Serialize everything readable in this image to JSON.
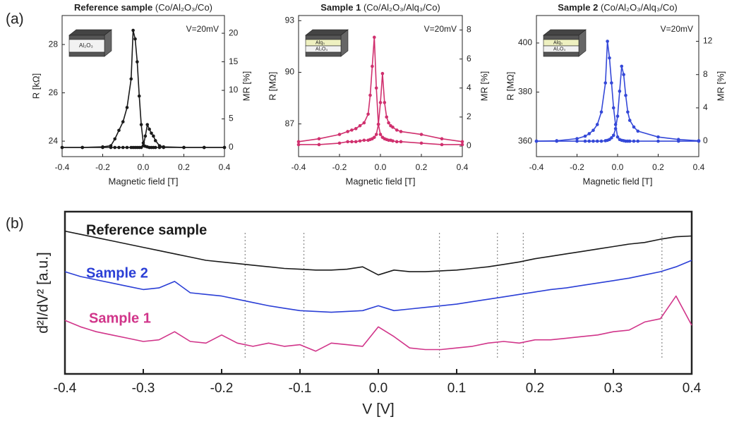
{
  "panel_labels": [
    "(a)",
    "(b)"
  ],
  "chart_data": [
    {
      "type": "line",
      "title": "Reference sample",
      "subtitle": "(Co/Al₂O₃/Co)",
      "annotation": "V=20mV",
      "inset_labels": [
        "Al₂O₃"
      ],
      "markers": true,
      "x_label": "Magnetic field [T]",
      "y_label": "R [kΩ]",
      "y2_label": "MR [%]",
      "xlim": [
        -0.4,
        0.4
      ],
      "xticks": [
        -0.4,
        -0.2,
        {
          "value": 0,
          "label": "0.0"
        },
        0.2,
        0.4
      ],
      "ylim": [
        23.36,
        29.2
      ],
      "yticks": [
        24,
        26,
        28
      ],
      "y2lim": [
        -1.6,
        23.1
      ],
      "y2ticks": [
        0,
        5,
        10,
        15,
        20
      ],
      "x": [
        -0.4,
        -0.3,
        -0.2,
        -0.16,
        -0.14,
        -0.12,
        -0.1,
        -0.08,
        -0.06,
        -0.05,
        -0.04,
        -0.03,
        -0.02,
        -0.01,
        0,
        0.01,
        0.02,
        0.03,
        0.04,
        0.05,
        0.06,
        0.08,
        0.1,
        0.2,
        0.3,
        0.4
      ],
      "series": [
        {
          "color": "#1a1a1a",
          "axis": "y2",
          "values": [
            0,
            0,
            0.1,
            0.3,
            1.5,
            3,
            4.5,
            7,
            12,
            20.5,
            19,
            15,
            9,
            4,
            0.8,
            0.2,
            0.1,
            0,
            0,
            0,
            0,
            0,
            0,
            0,
            0,
            0
          ]
        },
        {
          "color": "#1a1a1a",
          "axis": "y2",
          "values": [
            0,
            0,
            0,
            0,
            0,
            0,
            0,
            0,
            0,
            0,
            0,
            0,
            0,
            0,
            0.3,
            2,
            4,
            3.2,
            2.5,
            2,
            1.2,
            0.3,
            0.1,
            0,
            0,
            0
          ]
        }
      ]
    },
    {
      "type": "line",
      "title": "Sample 1",
      "subtitle": "(Co/Al₂O₃/Alq₃/Co)",
      "annotation": "V=20mV",
      "inset_labels": [
        "Alq₃",
        "Al₂O₃"
      ],
      "markers": true,
      "x_label": "Magnetic field [T]",
      "y_label": "R [MΩ]",
      "y2_label": "MR [%]",
      "xlim": [
        -0.4,
        0.4
      ],
      "xticks": [
        -0.4,
        -0.2,
        {
          "value": 0,
          "label": "0.0"
        },
        0.2,
        0.4
      ],
      "ylim": [
        85.1,
        93.3
      ],
      "yticks": [
        87,
        90,
        93
      ],
      "y2lim": [
        -0.73,
        9.0
      ],
      "y2ticks": [
        0,
        2,
        4,
        6,
        8
      ],
      "x": [
        -0.4,
        -0.3,
        -0.2,
        -0.16,
        -0.14,
        -0.12,
        -0.1,
        -0.08,
        -0.06,
        -0.05,
        -0.04,
        -0.03,
        -0.02,
        -0.01,
        0,
        0.01,
        0.02,
        0.03,
        0.04,
        0.05,
        0.06,
        0.08,
        0.1,
        0.2,
        0.3,
        0.4
      ],
      "series": [
        {
          "color": "#d0306e",
          "axis": "y2",
          "values": [
            0.3,
            0.5,
            0.8,
            1,
            1.1,
            1.2,
            1.4,
            1.6,
            2.2,
            3.5,
            5.5,
            7.5,
            4,
            1.5,
            0.8,
            0.6,
            0.5,
            0.45,
            0.4,
            0.4,
            0.35,
            0.3,
            0.3,
            0.2,
            0.1,
            0.1
          ]
        },
        {
          "color": "#d0306e",
          "axis": "y2",
          "values": [
            0.1,
            0.1,
            0.2,
            0.3,
            0.3,
            0.3,
            0.35,
            0.4,
            0.4,
            0.45,
            0.5,
            0.6,
            0.8,
            1.5,
            3,
            5,
            3,
            2,
            1.6,
            1.4,
            1.3,
            1.1,
            1,
            0.8,
            0.5,
            0.3
          ]
        }
      ]
    },
    {
      "type": "line",
      "title": "Sample 2",
      "subtitle": "(Co/Al₂O₃/Alq₃/Co)",
      "annotation": "V=20mV",
      "inset_labels": [
        "Alq₃",
        "Al₂O₃"
      ],
      "markers": true,
      "x_label": "Magnetic field [T]",
      "y_label": "R [MΩ]",
      "y2_label": "MR [%]",
      "xlim": [
        -0.4,
        0.4
      ],
      "xticks": [
        -0.4,
        -0.2,
        {
          "value": 0,
          "label": "0.0"
        },
        0.2,
        0.4
      ],
      "ylim": [
        353.7,
        411.2
      ],
      "yticks": [
        360,
        380,
        400
      ],
      "y2lim": [
        -1.86,
        15.1
      ],
      "y2ticks": [
        0,
        4,
        8,
        12
      ],
      "x": [
        -0.4,
        -0.3,
        -0.2,
        -0.16,
        -0.14,
        -0.12,
        -0.1,
        -0.08,
        -0.06,
        -0.05,
        -0.04,
        -0.03,
        -0.02,
        -0.01,
        0,
        0.01,
        0.02,
        0.03,
        0.04,
        0.05,
        0.06,
        0.08,
        0.1,
        0.2,
        0.3,
        0.4
      ],
      "series": [
        {
          "color": "#3448d8",
          "axis": "y2",
          "values": [
            0,
            0.05,
            0.3,
            0.6,
            0.9,
            1.3,
            2,
            3.5,
            7,
            12,
            10,
            7,
            4,
            2,
            0.5,
            0.2,
            0.1,
            0.05,
            0,
            0,
            0,
            0,
            0,
            0,
            0,
            0
          ]
        },
        {
          "color": "#3448d8",
          "axis": "y2",
          "values": [
            0,
            0,
            0,
            0,
            0,
            0,
            0,
            0,
            0.05,
            0.1,
            0.2,
            0.4,
            0.7,
            1.5,
            3,
            6,
            9,
            8,
            5.5,
            3.5,
            2.5,
            1.7,
            1.2,
            0.5,
            0.2,
            0.05
          ]
        }
      ]
    },
    {
      "type": "line",
      "markers": false,
      "x_label": "V [V]",
      "y_label": "d²I/dV² [a.u.]",
      "xlim": [
        -0.4,
        0.4
      ],
      "xticks": [
        -0.4,
        -0.3,
        -0.2,
        -0.1,
        {
          "value": 0,
          "label": "0.0"
        },
        0.1,
        0.2,
        0.3,
        0.4
      ],
      "ylim": [
        0,
        10
      ],
      "vlines": [
        -0.17,
        -0.095,
        0.078,
        0.152,
        0.185,
        0.362
      ],
      "x": [
        -0.4,
        -0.38,
        -0.36,
        -0.34,
        -0.32,
        -0.3,
        -0.28,
        -0.26,
        -0.24,
        -0.22,
        -0.2,
        -0.18,
        -0.16,
        -0.14,
        -0.12,
        -0.1,
        -0.08,
        -0.06,
        -0.04,
        -0.02,
        0,
        0.02,
        0.04,
        0.06,
        0.08,
        0.1,
        0.12,
        0.14,
        0.16,
        0.18,
        0.2,
        0.22,
        0.24,
        0.26,
        0.28,
        0.3,
        0.32,
        0.34,
        0.36,
        0.38,
        0.4
      ],
      "series": [
        {
          "name": "Reference sample",
          "color": "#1a1a1a",
          "values": [
            8.8,
            8.6,
            8.4,
            8.2,
            8.0,
            7.8,
            7.6,
            7.4,
            7.2,
            7.0,
            6.9,
            6.8,
            6.7,
            6.6,
            6.5,
            6.45,
            6.4,
            6.4,
            6.45,
            6.6,
            6.1,
            6.4,
            6.3,
            6.3,
            6.35,
            6.4,
            6.5,
            6.6,
            6.75,
            6.9,
            7.1,
            7.25,
            7.4,
            7.55,
            7.7,
            7.85,
            8.0,
            8.1,
            8.3,
            8.45,
            8.5
          ]
        },
        {
          "name": "Sample 2",
          "color": "#2b3fd6",
          "values": [
            6.3,
            6.0,
            5.8,
            5.6,
            5.4,
            5.2,
            5.3,
            5.7,
            5.0,
            4.9,
            4.8,
            4.6,
            4.4,
            4.2,
            4.05,
            3.9,
            3.85,
            3.8,
            3.85,
            3.9,
            4.2,
            3.9,
            4.0,
            4.1,
            4.2,
            4.3,
            4.45,
            4.6,
            4.75,
            4.9,
            5.05,
            5.2,
            5.3,
            5.45,
            5.6,
            5.75,
            5.9,
            6.1,
            6.3,
            6.6,
            7.0
          ]
        },
        {
          "name": "Sample 1",
          "color": "#d1358a",
          "values": [
            3.3,
            2.9,
            2.6,
            2.4,
            2.2,
            2.0,
            2.1,
            2.6,
            2.0,
            1.9,
            2.4,
            1.9,
            1.7,
            1.9,
            1.7,
            1.8,
            1.4,
            1.9,
            1.8,
            1.7,
            2.9,
            2.3,
            1.6,
            1.5,
            1.5,
            1.6,
            1.7,
            1.9,
            2.0,
            1.9,
            2.1,
            2.1,
            2.2,
            2.3,
            2.4,
            2.6,
            2.7,
            3.2,
            3.4,
            4.8,
            3.0
          ]
        }
      ]
    }
  ]
}
